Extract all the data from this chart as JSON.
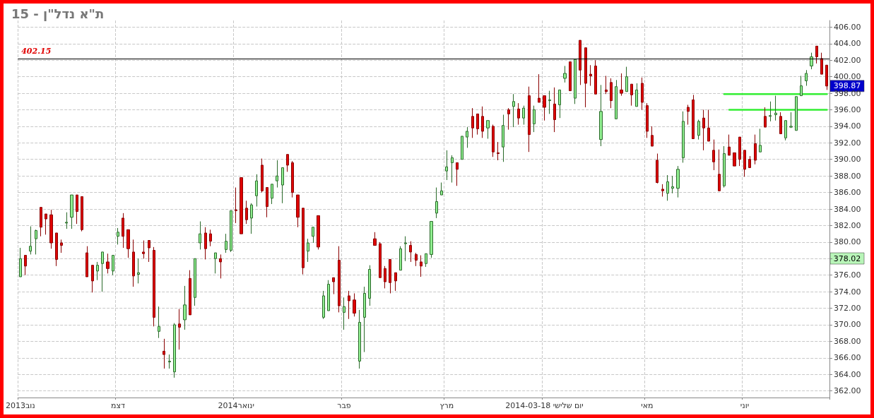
{
  "chart_data": {
    "type": "candlestick",
    "title": "ת\"א נדל\"ן - 15",
    "categories": [
      "נוב2013",
      null,
      null,
      null,
      null,
      null,
      null,
      null,
      null,
      null,
      null,
      null,
      null,
      null,
      null,
      null,
      null,
      null,
      null,
      "דצמ",
      null,
      null,
      null,
      null,
      null,
      null,
      null,
      null,
      null,
      null,
      null,
      null,
      null,
      null,
      null,
      null,
      null,
      null,
      null,
      null,
      null,
      null,
      "ינואר2014",
      null,
      null,
      null,
      null,
      null,
      null,
      null,
      null,
      null,
      null,
      null,
      null,
      null,
      null,
      null,
      null,
      null,
      null,
      null,
      null,
      "פבר",
      null,
      null,
      null,
      null,
      null,
      null,
      null,
      null,
      null,
      null,
      null,
      null,
      null,
      null,
      null,
      null,
      null,
      null,
      null,
      "מרץ",
      null,
      null,
      null,
      null,
      null,
      null,
      null,
      null,
      null,
      null,
      null,
      null,
      null,
      null,
      null,
      null,
      null,
      null,
      "2014-03-18 יום שלישי",
      null,
      null,
      null,
      null,
      null,
      null,
      null,
      null,
      null,
      null,
      null,
      null,
      null,
      null,
      null,
      null,
      null,
      null,
      null,
      "מאי",
      null,
      null,
      null,
      null,
      null,
      null,
      null,
      null,
      null,
      null,
      null,
      null,
      null,
      null,
      null,
      null,
      null,
      null,
      "יוני",
      null,
      null,
      null,
      null,
      null,
      null,
      null,
      null,
      null,
      null,
      null,
      null,
      null,
      null,
      null,
      null
    ],
    "ohlc": [
      [
        375.8,
        379.3,
        375.8,
        378.0
      ],
      [
        378.4,
        378.4,
        376.0,
        377.1
      ],
      [
        378.9,
        381.9,
        378.5,
        379.5
      ],
      [
        380.4,
        381.5,
        378.5,
        381.4
      ],
      [
        384.2,
        384.2,
        380.7,
        381.8
      ],
      [
        383.4,
        383.4,
        380.9,
        382.8
      ],
      [
        383.3,
        383.9,
        379.2,
        379.9
      ],
      [
        381.1,
        381.1,
        377.1,
        377.9
      ],
      [
        379.9,
        380.3,
        378.7,
        379.6
      ],
      [
        382.3,
        383.6,
        381.6,
        382.4
      ],
      [
        383.0,
        385.7,
        381.6,
        385.7
      ],
      [
        385.7,
        385.7,
        382.2,
        383.7
      ],
      [
        385.5,
        385.5,
        381.3,
        381.5
      ],
      [
        378.7,
        379.5,
        375.8,
        375.8
      ],
      [
        377.2,
        377.2,
        373.9,
        375.3
      ],
      [
        376.5,
        377.6,
        375.4,
        377.2
      ],
      [
        377.4,
        378.8,
        374.0,
        378.8
      ],
      [
        377.6,
        378.6,
        376.2,
        376.8
      ],
      [
        376.5,
        378.4,
        376.0,
        378.4
      ],
      [
        380.7,
        381.7,
        379.7,
        381.2
      ],
      [
        382.9,
        383.5,
        379.3,
        380.7
      ],
      [
        381.5,
        381.5,
        378.1,
        379.2
      ],
      [
        378.8,
        380.3,
        374.6,
        375.9
      ],
      [
        376.1,
        378.0,
        375.0,
        376.3
      ],
      [
        378.8,
        380.2,
        378.0,
        378.6
      ],
      [
        380.2,
        380.2,
        377.6,
        379.3
      ],
      [
        379.0,
        379.4,
        369.8,
        370.9
      ],
      [
        369.2,
        372.2,
        368.4,
        369.8
      ],
      [
        366.8,
        368.3,
        364.7,
        366.4
      ],
      [
        365.5,
        366.4,
        364.7,
        365.6
      ],
      [
        364.3,
        370.2,
        363.6,
        370.0
      ],
      [
        370.1,
        371.9,
        367.0,
        369.7
      ],
      [
        370.6,
        374.7,
        369.4,
        372.4
      ],
      [
        375.6,
        376.6,
        371.2,
        371.2
      ],
      [
        373.3,
        378.0,
        372.3,
        378.0
      ],
      [
        379.9,
        382.5,
        379.1,
        381.0
      ],
      [
        381.1,
        381.8,
        377.9,
        379.2
      ],
      [
        381.0,
        381.5,
        379.5,
        380.1
      ],
      [
        378.0,
        378.7,
        376.2,
        378.7
      ],
      [
        378.0,
        378.5,
        375.6,
        377.6
      ],
      [
        379.1,
        381.0,
        378.7,
        380.1
      ],
      [
        379.0,
        383.8,
        378.8,
        383.8
      ],
      [
        383.9,
        386.6,
        382.3,
        383.8
      ],
      [
        387.8,
        387.8,
        381.0,
        381.0
      ],
      [
        384.1,
        385.0,
        382.2,
        382.7
      ],
      [
        382.9,
        384.7,
        381.0,
        384.5
      ],
      [
        385.6,
        388.2,
        384.3,
        387.4
      ],
      [
        389.3,
        390.1,
        386.0,
        386.2
      ],
      [
        386.6,
        386.6,
        383.0,
        384.3
      ],
      [
        385.3,
        387.0,
        384.6,
        387.0
      ],
      [
        387.4,
        389.9,
        386.6,
        388.0
      ],
      [
        386.9,
        389.0,
        384.7,
        389.0
      ],
      [
        390.6,
        390.6,
        388.5,
        389.3
      ],
      [
        389.6,
        389.8,
        385.4,
        386.0
      ],
      [
        385.7,
        385.7,
        381.8,
        383.0
      ],
      [
        384.1,
        384.1,
        376.1,
        376.9
      ],
      [
        378.9,
        380.4,
        377.6,
        379.9
      ],
      [
        380.7,
        381.8,
        379.9,
        381.8
      ],
      [
        383.2,
        383.2,
        379.1,
        379.4
      ],
      [
        370.9,
        374.1,
        370.7,
        373.5
      ],
      [
        371.7,
        375.4,
        371.7,
        374.9
      ],
      [
        375.7,
        375.7,
        373.7,
        375.2
      ],
      [
        377.8,
        379.5,
        371.5,
        372.3
      ],
      [
        371.5,
        373.3,
        369.4,
        372.2
      ],
      [
        373.5,
        374.1,
        370.7,
        372.9
      ],
      [
        373.0,
        373.8,
        371.0,
        371.4
      ],
      [
        365.6,
        371.8,
        364.7,
        370.3
      ],
      [
        370.9,
        374.6,
        366.7,
        373.8
      ],
      [
        373.2,
        377.2,
        372.3,
        376.7
      ],
      [
        380.4,
        381.2,
        379.6,
        379.6
      ],
      [
        379.8,
        380.0,
        375.7,
        375.7
      ],
      [
        376.8,
        377.1,
        374.4,
        375.2
      ],
      [
        377.9,
        377.9,
        373.8,
        375.1
      ],
      [
        376.3,
        376.3,
        374.1,
        375.3
      ],
      [
        376.6,
        379.5,
        376.6,
        379.2
      ],
      [
        379.8,
        380.7,
        377.7,
        379.9
      ],
      [
        379.6,
        380.1,
        377.6,
        378.8
      ],
      [
        378.5,
        378.7,
        377.1,
        377.8
      ],
      [
        377.6,
        378.4,
        375.8,
        377.1
      ],
      [
        377.4,
        378.6,
        377.0,
        378.6
      ],
      [
        378.5,
        382.5,
        378.1,
        382.5
      ],
      [
        383.5,
        386.6,
        382.9,
        384.9
      ],
      [
        385.7,
        387.2,
        385.7,
        386.2
      ],
      [
        388.6,
        391.1,
        387.5,
        389.1
      ],
      [
        389.6,
        390.5,
        387.2,
        390.2
      ],
      [
        389.6,
        389.6,
        386.8,
        388.8
      ],
      [
        390.0,
        392.8,
        390.0,
        392.8
      ],
      [
        392.7,
        393.9,
        391.4,
        393.4
      ],
      [
        395.2,
        396.2,
        392.6,
        393.8
      ],
      [
        395.5,
        395.5,
        393.0,
        393.7
      ],
      [
        395.2,
        396.4,
        392.6,
        393.4
      ],
      [
        393.8,
        394.7,
        392.5,
        394.7
      ],
      [
        394.0,
        394.2,
        390.3,
        390.9
      ],
      [
        390.8,
        392.1,
        389.9,
        390.7
      ],
      [
        391.5,
        395.4,
        389.7,
        394.1
      ],
      [
        396.0,
        396.2,
        393.6,
        395.5
      ],
      [
        396.4,
        397.9,
        393.9,
        397.0
      ],
      [
        396.1,
        396.8,
        394.2,
        395.0
      ],
      [
        395.0,
        396.5,
        394.2,
        396.2
      ],
      [
        397.7,
        398.8,
        390.9,
        393.0
      ],
      [
        394.3,
        396.5,
        393.3,
        396.0
      ],
      [
        397.4,
        400.3,
        396.9,
        396.9
      ],
      [
        397.7,
        397.7,
        394.7,
        396.3
      ],
      [
        397.1,
        398.3,
        395.5,
        397.2
      ],
      [
        396.7,
        398.7,
        393.3,
        394.8
      ],
      [
        396.6,
        398.4,
        395.0,
        398.4
      ],
      [
        399.8,
        401.3,
        399.3,
        400.4
      ],
      [
        401.8,
        401.8,
        398.3,
        398.3
      ],
      [
        397.4,
        402.1,
        396.7,
        402.1
      ],
      [
        404.4,
        404.4,
        399.0,
        400.8
      ],
      [
        403.5,
        403.5,
        396.3,
        399.2
      ],
      [
        400.3,
        401.4,
        398.9,
        400.1
      ],
      [
        401.3,
        402.0,
        397.9,
        397.9
      ],
      [
        392.4,
        399.0,
        391.6,
        395.8
      ],
      [
        398.4,
        400.1,
        397.9,
        398.2
      ],
      [
        399.3,
        399.8,
        396.2,
        397.1
      ],
      [
        394.9,
        399.6,
        394.9,
        398.8
      ],
      [
        398.4,
        400.4,
        397.7,
        398.0
      ],
      [
        398.2,
        401.2,
        398.2,
        400.0
      ],
      [
        399.1,
        399.1,
        396.5,
        397.8
      ],
      [
        396.4,
        399.2,
        396.4,
        398.4
      ],
      [
        399.2,
        399.9,
        396.0,
        396.9
      ],
      [
        396.5,
        396.8,
        392.6,
        393.4
      ],
      [
        392.9,
        394.0,
        391.6,
        391.6
      ],
      [
        389.9,
        390.7,
        387.1,
        387.2
      ],
      [
        386.4,
        387.0,
        385.5,
        386.2
      ],
      [
        385.9,
        388.1,
        385.0,
        387.3
      ],
      [
        386.5,
        388.0,
        385.9,
        386.7
      ],
      [
        386.5,
        389.2,
        385.4,
        388.8
      ],
      [
        390.2,
        395.8,
        389.6,
        394.6
      ],
      [
        396.3,
        396.6,
        394.2,
        395.8
      ],
      [
        397.2,
        397.8,
        392.5,
        392.5
      ],
      [
        392.9,
        394.8,
        392.4,
        394.6
      ],
      [
        395.0,
        396.0,
        391.1,
        393.8
      ],
      [
        393.8,
        396.0,
        392.2,
        392.2
      ],
      [
        391.1,
        392.4,
        388.7,
        389.7
      ],
      [
        388.2,
        391.2,
        386.2,
        386.2
      ],
      [
        386.8,
        391.6,
        386.6,
        390.7
      ],
      [
        391.5,
        393.0,
        390.5,
        390.5
      ],
      [
        390.8,
        390.8,
        389.2,
        389.2
      ],
      [
        392.7,
        392.7,
        389.2,
        390.0
      ],
      [
        391.1,
        391.1,
        387.9,
        388.8
      ],
      [
        390.0,
        390.4,
        389.0,
        389.0
      ],
      [
        391.9,
        393.0,
        389.4,
        389.9
      ],
      [
        390.9,
        393.7,
        390.9,
        391.7
      ],
      [
        395.2,
        396.3,
        393.9,
        393.9
      ],
      [
        395.2,
        397.0,
        394.6,
        395.3
      ],
      [
        395.4,
        397.7,
        394.7,
        395.6
      ],
      [
        395.2,
        395.7,
        393.1,
        393.1
      ],
      [
        392.6,
        394.7,
        392.3,
        394.7
      ],
      [
        393.9,
        395.7,
        393.8,
        394.0
      ],
      [
        393.5,
        397.6,
        393.5,
        397.6
      ],
      [
        397.7,
        400.1,
        397.7,
        398.9
      ],
      [
        399.5,
        400.8,
        398.9,
        400.4
      ],
      [
        401.3,
        402.9,
        400.9,
        402.4
      ],
      [
        403.7,
        403.7,
        401.6,
        402.4
      ],
      [
        402.2,
        402.9,
        400.3,
        400.3
      ],
      [
        401.4,
        401.4,
        398.4,
        398.87
      ]
    ],
    "series": [
      {
        "type": "line",
        "color": "#33ee33",
        "values": [
          null,
          null,
          null,
          null,
          null,
          null,
          null,
          null,
          null,
          null,
          null,
          null,
          null,
          null,
          null,
          null,
          null,
          null,
          null,
          null,
          null,
          null,
          null,
          null,
          null,
          null,
          null,
          null,
          null,
          null,
          null,
          null,
          null,
          null,
          null,
          null,
          null,
          null,
          null,
          null,
          null,
          null,
          null,
          null,
          null,
          null,
          null,
          null,
          null,
          null,
          null,
          null,
          null,
          null,
          null,
          null,
          null,
          null,
          null,
          null,
          null,
          null,
          null,
          null,
          null,
          null,
          null,
          null,
          null,
          null,
          null,
          null,
          null,
          null,
          null,
          null,
          null,
          null,
          null,
          null,
          null,
          null,
          null,
          null,
          null,
          null,
          null,
          null,
          null,
          null,
          null,
          null,
          null,
          null,
          null,
          null,
          null,
          null,
          null,
          null,
          null,
          null,
          null,
          null,
          null,
          null,
          null,
          null,
          null,
          null,
          null,
          null,
          null,
          null,
          null,
          null,
          null,
          null,
          null,
          null,
          null,
          null,
          null,
          null,
          null,
          null,
          null,
          null,
          null,
          null,
          null,
          null,
          null,
          null,
          null,
          null,
          null,
          397.9,
          397.9,
          397.9,
          397.9,
          397.9,
          397.9,
          397.9,
          397.9,
          397.9,
          397.9,
          397.9,
          397.9,
          397.9,
          397.9,
          397.9,
          397.9,
          397.9,
          397.9,
          397.9,
          397.9,
          397.9
        ]
      },
      {
        "type": "line",
        "color": "#33ee33",
        "values": [
          null,
          null,
          null,
          null,
          null,
          null,
          null,
          null,
          null,
          null,
          null,
          null,
          null,
          null,
          null,
          null,
          null,
          null,
          null,
          null,
          null,
          null,
          null,
          null,
          null,
          null,
          null,
          null,
          null,
          null,
          null,
          null,
          null,
          null,
          null,
          null,
          null,
          null,
          null,
          null,
          null,
          null,
          null,
          null,
          null,
          null,
          null,
          null,
          null,
          null,
          null,
          null,
          null,
          null,
          null,
          null,
          null,
          null,
          null,
          null,
          null,
          null,
          null,
          null,
          null,
          null,
          null,
          null,
          null,
          null,
          null,
          null,
          null,
          null,
          null,
          null,
          null,
          null,
          null,
          null,
          null,
          null,
          null,
          null,
          null,
          null,
          null,
          null,
          null,
          null,
          null,
          null,
          null,
          null,
          null,
          null,
          null,
          null,
          null,
          null,
          null,
          null,
          null,
          null,
          null,
          null,
          null,
          null,
          null,
          null,
          null,
          null,
          null,
          null,
          null,
          null,
          null,
          null,
          null,
          null,
          null,
          null,
          null,
          null,
          null,
          null,
          null,
          null,
          null,
          null,
          null,
          null,
          null,
          null,
          null,
          null,
          null,
          null,
          396.0,
          396.0,
          396.0,
          396.0,
          396.0,
          396.0,
          396.0,
          396.0,
          396.0,
          396.0,
          396.0,
          396.0,
          396.0,
          396.0,
          396.0,
          396.0,
          396.0,
          396.0,
          396.0,
          396.0
        ]
      }
    ],
    "ylim": [
      361.2,
      406.8
    ],
    "yticks": [
      {
        "value": 362,
        "label": "362.00"
      },
      {
        "value": 364,
        "label": "364.00"
      },
      {
        "value": 366,
        "label": "366.00"
      },
      {
        "value": 368,
        "label": "368.00"
      },
      {
        "value": 370,
        "label": "370.00"
      },
      {
        "value": 372,
        "label": "372.00"
      },
      {
        "value": 374,
        "label": "374.00"
      },
      {
        "value": 376,
        "label": "376.00"
      },
      {
        "value": 378,
        "label": null
      },
      {
        "value": 380,
        "label": "380.00"
      },
      {
        "value": 382,
        "label": "382.00"
      },
      {
        "value": 384,
        "label": "384.00"
      },
      {
        "value": 386,
        "label": "386.00"
      },
      {
        "value": 388,
        "label": "388.00"
      },
      {
        "value": 390,
        "label": "390.00"
      },
      {
        "value": 392,
        "label": "392.00"
      },
      {
        "value": 394,
        "label": "394.00"
      },
      {
        "value": 396,
        "label": "396.00"
      },
      {
        "value": 398,
        "label": "398.00"
      },
      {
        "value": 400,
        "label": "400.00"
      },
      {
        "value": 402,
        "label": "402.00"
      },
      {
        "value": 404,
        "label": "404.00"
      },
      {
        "value": 406,
        "label": "406.00"
      }
    ],
    "ref_lines": [
      {
        "axis": "y",
        "value": 402.15,
        "label": "402.15",
        "color": "#000000"
      }
    ],
    "annotations": [
      "398.87",
      "378.02"
    ],
    "grid": true
  }
}
